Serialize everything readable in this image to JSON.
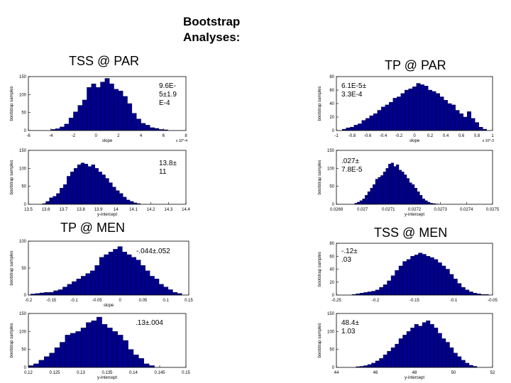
{
  "page": {
    "title_line1": "Bootstrap",
    "title_line2": "Analyses:",
    "sections": {
      "tss_par": "TSS @ PAR",
      "tp_par": "TP @ PAR",
      "tp_men": "TP @ MEN",
      "tss_men": "TSS @ MEN"
    }
  },
  "colors": {
    "bar_fill": "#00008b",
    "bar_stroke": "#000033",
    "axis": "#000000"
  },
  "chart_data": [
    {
      "type": "bar",
      "id": "tss-par-slope",
      "ylabel": "bootstrap samples",
      "xlabel": "slope",
      "annotation": [
        "9.6E-",
        "5±1.9",
        "E-4"
      ],
      "exponent_label": "x 10^-4",
      "xticks": [
        -6,
        -4,
        -2,
        0,
        2,
        4,
        6,
        8
      ],
      "yticks": [
        0,
        50,
        100,
        150
      ],
      "xlim": [
        -6,
        8
      ],
      "ylim": [
        0,
        150
      ],
      "x": [
        -3.8,
        -3.4,
        -3.0,
        -2.6,
        -2.2,
        -1.8,
        -1.4,
        -1.0,
        -0.6,
        -0.2,
        0.2,
        0.6,
        1.0,
        1.4,
        1.8,
        2.2,
        2.6,
        3.0,
        3.4,
        3.8,
        4.2,
        4.6,
        5.0,
        5.4,
        5.8,
        6.2
      ],
      "values": [
        3,
        5,
        10,
        18,
        35,
        52,
        70,
        85,
        120,
        130,
        120,
        135,
        145,
        130,
        115,
        110,
        95,
        75,
        48,
        32,
        20,
        15,
        8,
        6,
        3,
        2
      ],
      "bar_width": 0.4
    },
    {
      "type": "bar",
      "id": "tss-par-intercept",
      "ylabel": "bootstrap samples",
      "xlabel": "y-intercept",
      "annotation": [
        "13.8±",
        "11"
      ],
      "xticks": [
        13.5,
        13.6,
        13.7,
        13.8,
        13.9,
        14,
        14.1,
        14.2,
        14.3,
        14.4
      ],
      "yticks": [
        0,
        50,
        100,
        150
      ],
      "xticklabels": [
        "13.5",
        "13.6",
        "13.7",
        "13.8",
        "13.9",
        "14",
        "14.1",
        "14.2",
        "14.3",
        "14.4"
      ],
      "xlim": [
        13.5,
        14.4
      ],
      "ylim": [
        0,
        150
      ],
      "x": [
        13.59,
        13.61,
        13.63,
        13.65,
        13.67,
        13.69,
        13.71,
        13.73,
        13.75,
        13.77,
        13.79,
        13.81,
        13.83,
        13.85,
        13.87,
        13.89,
        13.91,
        13.93,
        13.95,
        13.97,
        13.99,
        14.01,
        14.03,
        14.05,
        14.07,
        14.09,
        14.11,
        14.13
      ],
      "values": [
        2,
        8,
        18,
        22,
        30,
        45,
        55,
        78,
        90,
        100,
        110,
        115,
        112,
        105,
        110,
        100,
        90,
        82,
        72,
        60,
        48,
        38,
        30,
        20,
        12,
        8,
        4,
        2
      ],
      "bar_width": 0.02
    },
    {
      "type": "bar",
      "id": "tp-par-slope",
      "ylabel": "bootstrap samples",
      "xlabel": "slope",
      "annotation": [
        "6.1E-5±",
        "3.3E-4"
      ],
      "exponent_label": "x 10^-3",
      "xticks": [
        -1,
        -0.8,
        -0.6,
        -0.4,
        -0.2,
        0,
        0.2,
        0.4,
        0.6,
        0.8,
        1
      ],
      "xticklabels": [
        "-1",
        "-0.8",
        "-0.6",
        "-0.4",
        "-0.2",
        "0",
        "0.2",
        "0.4",
        "0.6",
        "0.8",
        "1"
      ],
      "yticks": [
        0,
        20,
        40,
        60,
        80
      ],
      "xlim": [
        -1,
        1
      ],
      "ylim": [
        0,
        80
      ],
      "x": [
        -0.9,
        -0.85,
        -0.8,
        -0.75,
        -0.7,
        -0.65,
        -0.6,
        -0.55,
        -0.5,
        -0.45,
        -0.4,
        -0.35,
        -0.3,
        -0.25,
        -0.2,
        -0.15,
        -0.1,
        -0.05,
        0.0,
        0.05,
        0.1,
        0.15,
        0.2,
        0.25,
        0.3,
        0.35,
        0.4,
        0.45,
        0.5,
        0.55,
        0.6,
        0.65,
        0.7,
        0.75,
        0.8,
        0.85,
        0.9
      ],
      "values": [
        2,
        4,
        5,
        8,
        10,
        15,
        18,
        22,
        25,
        30,
        35,
        38,
        42,
        48,
        50,
        55,
        60,
        62,
        65,
        70,
        68,
        66,
        60,
        58,
        55,
        50,
        45,
        40,
        38,
        30,
        25,
        20,
        28,
        18,
        12,
        5,
        2
      ],
      "bar_width": 0.05
    },
    {
      "type": "bar",
      "id": "tp-par-intercept",
      "ylabel": "bootstrap samples",
      "xlabel": "y-intercept",
      "annotation": [
        ".027±",
        "7.8E-5"
      ],
      "xticks": [
        0.0269,
        0.027,
        0.0271,
        0.0272,
        0.0273,
        0.0274,
        0.0275
      ],
      "xticklabels": [
        "0.0269",
        "0.027",
        "0.0271",
        "0.0272",
        "0.0273",
        "0.0274",
        "0.0275"
      ],
      "yticks": [
        0,
        50,
        100,
        150
      ],
      "xlim": [
        0.0269,
        0.0275
      ],
      "ylim": [
        0,
        150
      ],
      "x": [
        0.026975,
        0.026985,
        0.026995,
        0.027005,
        0.027015,
        0.027025,
        0.027035,
        0.027045,
        0.027055,
        0.027065,
        0.027075,
        0.027085,
        0.027095,
        0.027105,
        0.027115,
        0.027125,
        0.027135,
        0.027145,
        0.027155,
        0.027165,
        0.027175,
        0.027185,
        0.027195,
        0.027205,
        0.027215,
        0.027225,
        0.027235,
        0.027245,
        0.027255,
        0.027265,
        0.027275,
        0.027285
      ],
      "values": [
        3,
        6,
        10,
        15,
        25,
        35,
        45,
        55,
        70,
        75,
        80,
        90,
        100,
        112,
        115,
        105,
        110,
        95,
        90,
        82,
        72,
        60,
        55,
        45,
        35,
        25,
        15,
        10,
        6,
        3,
        2,
        1
      ],
      "bar_width": 1e-05
    },
    {
      "type": "bar",
      "id": "tp-men-slope",
      "ylabel": "bootstrap samples",
      "xlabel": "slope",
      "annotation": [
        "-.044±.052"
      ],
      "xticks": [
        -0.2,
        -0.15,
        -0.1,
        -0.05,
        0,
        0.05,
        0.1,
        0.15
      ],
      "xticklabels": [
        "-0.2",
        "-0.15",
        "-0.1",
        "-0.05",
        "0",
        "0.05",
        "0.1",
        "0.15"
      ],
      "yticks": [
        0,
        50,
        100
      ],
      "xlim": [
        -0.2,
        0.15
      ],
      "ylim": [
        0,
        100
      ],
      "x": [
        -0.19,
        -0.18,
        -0.17,
        -0.16,
        -0.15,
        -0.14,
        -0.13,
        -0.12,
        -0.11,
        -0.1,
        -0.09,
        -0.08,
        -0.07,
        -0.06,
        -0.05,
        -0.04,
        -0.03,
        -0.02,
        -0.01,
        0.0,
        0.01,
        0.02,
        0.03,
        0.04,
        0.05,
        0.06,
        0.07,
        0.08,
        0.09,
        0.1,
        0.11,
        0.12,
        0.13
      ],
      "values": [
        2,
        3,
        4,
        5,
        5,
        8,
        10,
        15,
        20,
        25,
        30,
        35,
        40,
        45,
        55,
        70,
        75,
        80,
        85,
        90,
        80,
        75,
        70,
        65,
        55,
        45,
        35,
        30,
        20,
        15,
        10,
        5,
        3
      ],
      "bar_width": 0.01
    },
    {
      "type": "bar",
      "id": "tp-men-intercept",
      "ylabel": "bootstrap samples",
      "xlabel": "y-intercept",
      "annotation": [
        ".13±.004"
      ],
      "xticks": [
        0.12,
        0.125,
        0.13,
        0.135,
        0.14,
        0.145,
        0.15
      ],
      "xticklabels": [
        "0.12",
        "0.125",
        "0.13",
        "0.135",
        "0.14",
        "0.145",
        "0.15"
      ],
      "yticks": [
        0,
        50,
        100,
        150
      ],
      "xlim": [
        0.12,
        0.15
      ],
      "ylim": [
        0,
        150
      ],
      "x": [
        0.1205,
        0.1215,
        0.1225,
        0.1235,
        0.1245,
        0.1255,
        0.1265,
        0.1275,
        0.1285,
        0.1295,
        0.1305,
        0.1315,
        0.1325,
        0.1335,
        0.1345,
        0.1355,
        0.1365,
        0.1375,
        0.1385,
        0.1395,
        0.1405,
        0.1415,
        0.1425,
        0.1435
      ],
      "values": [
        5,
        10,
        20,
        30,
        40,
        55,
        70,
        90,
        95,
        100,
        110,
        125,
        130,
        140,
        120,
        110,
        100,
        90,
        75,
        50,
        35,
        25,
        10,
        5
      ],
      "bar_width": 0.001
    },
    {
      "type": "bar",
      "id": "tss-men-slope",
      "ylabel": "bootstrap samples",
      "xlabel": "",
      "annotation": [
        "-.12±",
        ".03"
      ],
      "xticks": [
        -0.25,
        -0.2,
        -0.15,
        -0.1,
        -0.05
      ],
      "xticklabels": [
        "-0.25",
        "-0.2",
        "-0.15",
        "-0.1",
        "-0.05"
      ],
      "yticks": [
        0,
        20,
        40,
        60,
        80
      ],
      "xlim": [
        -0.25,
        -0.05
      ],
      "ylim": [
        0,
        80
      ],
      "x": [
        -0.2275,
        -0.2225,
        -0.2175,
        -0.2125,
        -0.2075,
        -0.2025,
        -0.1975,
        -0.1925,
        -0.1875,
        -0.1825,
        -0.1775,
        -0.1725,
        -0.1675,
        -0.1625,
        -0.1575,
        -0.1525,
        -0.1475,
        -0.1425,
        -0.1375,
        -0.1325,
        -0.1275,
        -0.1225,
        -0.1175,
        -0.1125,
        -0.1075,
        -0.1025,
        -0.0975,
        -0.0925,
        -0.0875,
        -0.0825,
        -0.0775,
        -0.0725,
        -0.0675,
        -0.0625,
        -0.0575
      ],
      "values": [
        1,
        2,
        3,
        4,
        5,
        6,
        8,
        12,
        16,
        22,
        30,
        38,
        45,
        52,
        55,
        60,
        62,
        65,
        63,
        60,
        58,
        55,
        50,
        45,
        40,
        32,
        25,
        18,
        12,
        8,
        5,
        3,
        2,
        1,
        1
      ],
      "bar_width": 0.005
    },
    {
      "type": "bar",
      "id": "tss-men-intercept",
      "ylabel": "bootstrap samples",
      "xlabel": "y-intercept",
      "annotation": [
        "48.4±",
        "1.03"
      ],
      "xticks": [
        44,
        46,
        48,
        50,
        52
      ],
      "xticklabels": [
        "44",
        "46",
        "48",
        "50",
        "52"
      ],
      "yticks": [
        0,
        50,
        100,
        150
      ],
      "xlim": [
        44,
        52
      ],
      "ylim": [
        0,
        150
      ],
      "x": [
        45.1,
        45.3,
        45.5,
        45.7,
        45.9,
        46.1,
        46.3,
        46.5,
        46.7,
        46.9,
        47.1,
        47.3,
        47.5,
        47.7,
        47.9,
        48.1,
        48.3,
        48.5,
        48.7,
        48.9,
        49.1,
        49.3,
        49.5,
        49.7,
        49.9,
        50.1,
        50.3,
        50.5,
        50.7,
        50.9,
        51.1
      ],
      "values": [
        2,
        3,
        5,
        8,
        12,
        18,
        25,
        35,
        45,
        55,
        65,
        80,
        90,
        100,
        110,
        120,
        115,
        125,
        130,
        120,
        110,
        95,
        80,
        70,
        55,
        40,
        30,
        20,
        12,
        6,
        3
      ],
      "bar_width": 0.2
    }
  ]
}
